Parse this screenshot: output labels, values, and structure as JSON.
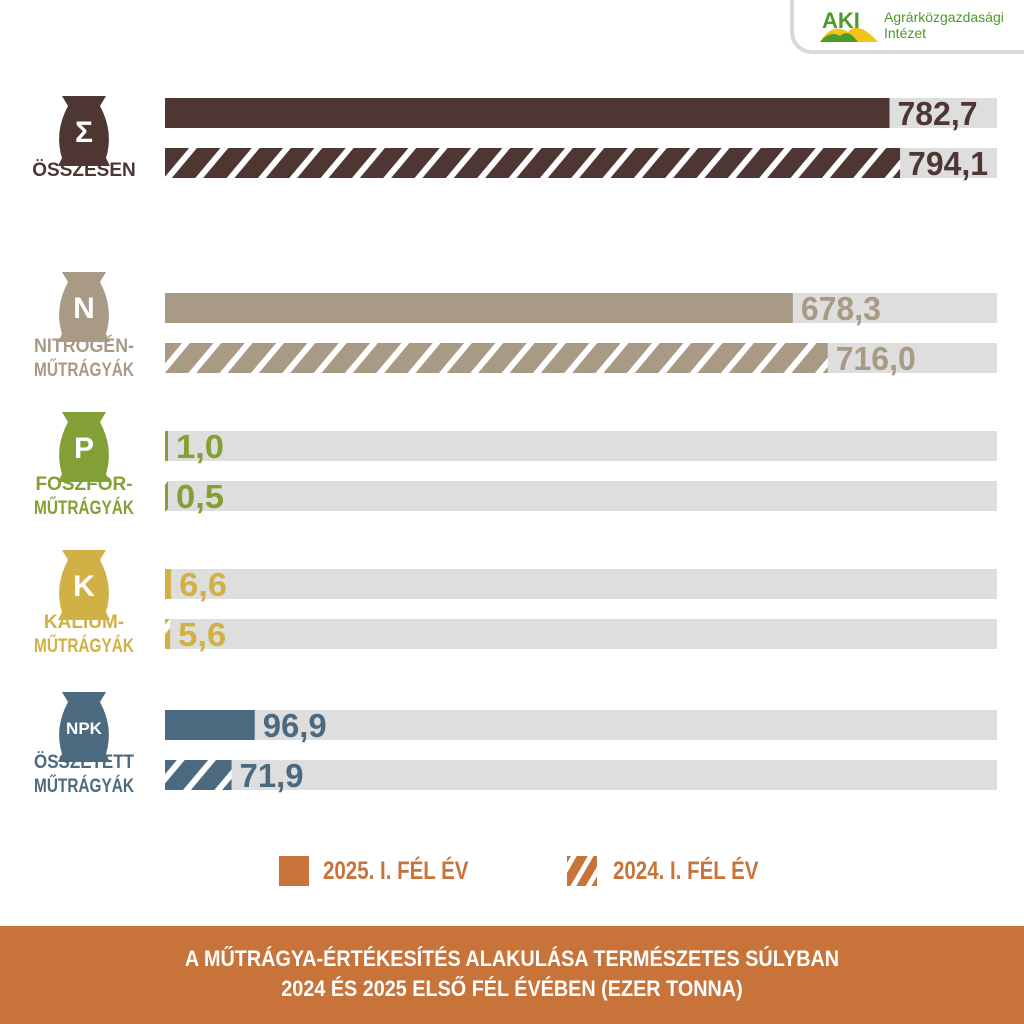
{
  "logo": {
    "mark": "AKI",
    "line1": "Agrárközgazdasági",
    "line2": "Intézet"
  },
  "colors": {
    "total": "#4e3633",
    "nitrogen": "#a89a85",
    "phosphorus": "#82a035",
    "potassium": "#d1b046",
    "npk": "#4b6a80",
    "track": "#dedede",
    "accent": "#c8733a"
  },
  "chart_data": {
    "type": "bar",
    "title": "A MŰTRÁGYA-ÉRTÉKESÍTÉS ALAKULÁSA TERMÉSZETES SÚLYBAN 2024 ÉS 2025 ELSŐ FÉL ÉVÉBEN (EZER TONNA)",
    "unit": "ezer tonna",
    "series": [
      {
        "name": "2025. I. FÉL ÉV",
        "fill": "solid"
      },
      {
        "name": "2024. I. FÉL ÉV",
        "fill": "hatched"
      }
    ],
    "groups": [
      {
        "key": "total",
        "icon": "Σ",
        "label": [
          "ÖSSZESEN"
        ],
        "values": [
          782.7,
          794.1
        ],
        "labels": [
          "782,7",
          "794,1"
        ],
        "color": "#4e3633"
      },
      {
        "key": "nitrogen",
        "icon": "N",
        "label": [
          "NITROGÉN-",
          "MŰTRÁGYÁK"
        ],
        "values": [
          678.3,
          716.0
        ],
        "labels": [
          "678,3",
          "716,0"
        ],
        "color": "#a89a85"
      },
      {
        "key": "phosphorus",
        "icon": "P",
        "label": [
          "FOSZFOR-",
          "MŰTRÁGYÁK"
        ],
        "values": [
          1.0,
          0.5
        ],
        "labels": [
          "1,0",
          "0,5"
        ],
        "color": "#82a035"
      },
      {
        "key": "potassium",
        "icon": "K",
        "label": [
          "KÁLIUM-",
          "MŰTRÁGYÁK"
        ],
        "values": [
          6.6,
          5.6
        ],
        "labels": [
          "6,6",
          "5,6"
        ],
        "color": "#d1b046"
      },
      {
        "key": "npk",
        "icon": "NPK",
        "label": [
          "ÖSSZETETT",
          "MŰTRÁGYÁK"
        ],
        "values": [
          96.9,
          71.9
        ],
        "labels": [
          "96,9",
          "71,9"
        ],
        "color": "#4b6a80"
      }
    ],
    "xlim": [
      0,
      780
    ]
  },
  "legend": {
    "items": [
      {
        "label": "2025. I. FÉL ÉV",
        "pattern": "solid"
      },
      {
        "label": "2024. I. FÉL ÉV",
        "pattern": "hatched"
      }
    ]
  },
  "footer": {
    "line1": "A MŰTRÁGYA-ÉRTÉKESÍTÉS ALAKULÁSA TERMÉSZETES SÚLYBAN",
    "line2": "2024 ÉS 2025 ELSŐ FÉL ÉVÉBEN (EZER TONNA)"
  }
}
